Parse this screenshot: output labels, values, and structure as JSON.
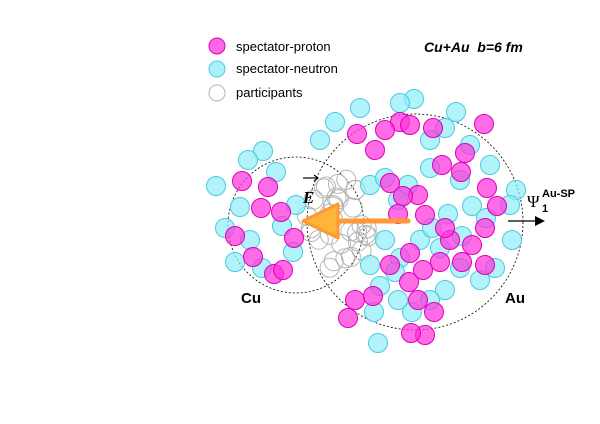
{
  "title": "Cu+Au  b=6 fm",
  "legend": {
    "proton": "spectator-proton",
    "neutron": "spectator-neutron",
    "participant": "participants"
  },
  "labels": {
    "cu": "Cu",
    "au": "Au",
    "field": "E",
    "plane_symbol": "Ψ",
    "plane_sub": "1",
    "plane_sup": "Au-SP"
  },
  "colors": {
    "proton_fill": "#ff33dd",
    "proton_stroke": "#dd00bb",
    "neutron_fill": "#8eeef8",
    "neutron_stroke": "#4cc9df",
    "participant_stroke": "#b5b5b5",
    "arrow": "#ff9933",
    "arrow_head": "#ffb43c"
  }
}
